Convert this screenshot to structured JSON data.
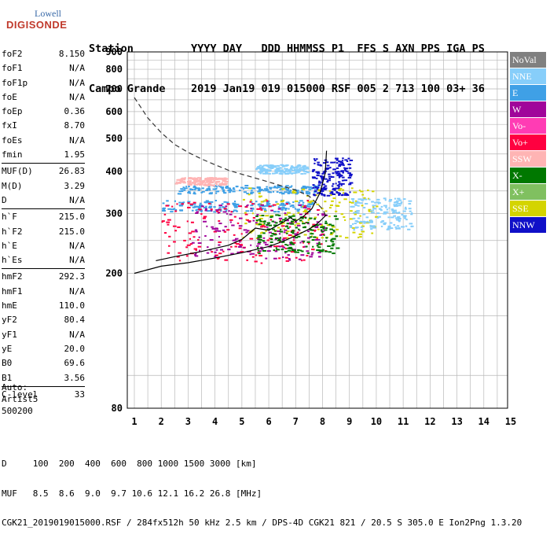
{
  "logo": {
    "line1": "Lowell",
    "line2": "DIGISONDE"
  },
  "header": {
    "row1": "Station         YYYY DAY   DDD HHMMSS P1  FFS S AXN PPS IGA PS",
    "row2": "Campo Grande    2019 Jan19 019 015000 RSF 005 2 713 100 03+ 36"
  },
  "params": [
    {
      "group": [
        {
          "k": "foF2",
          "v": "8.150"
        },
        {
          "k": "foF1",
          "v": "N/A"
        },
        {
          "k": "foF1p",
          "v": "N/A"
        },
        {
          "k": "foE",
          "v": "N/A"
        },
        {
          "k": "foEp",
          "v": "0.36"
        },
        {
          "k": "fxI",
          "v": "8.70"
        },
        {
          "k": "foEs",
          "v": "N/A"
        },
        {
          "k": "fmin",
          "v": "1.95"
        }
      ]
    },
    {
      "group": [
        {
          "k": "MUF(D)",
          "v": "26.83"
        },
        {
          "k": "M(D)",
          "v": "3.29"
        },
        {
          "k": "D",
          "v": "N/A"
        }
      ]
    },
    {
      "group": [
        {
          "k": "h`F",
          "v": "215.0"
        },
        {
          "k": "h`F2",
          "v": "215.0"
        },
        {
          "k": "h`E",
          "v": "N/A"
        },
        {
          "k": "h`Es",
          "v": "N/A"
        }
      ]
    },
    {
      "group": [
        {
          "k": "hmF2",
          "v": "292.3"
        },
        {
          "k": "hmF1",
          "v": "N/A"
        },
        {
          "k": "hmE",
          "v": "110.0"
        },
        {
          "k": "yF2",
          "v": "80.4"
        },
        {
          "k": "yF1",
          "v": "N/A"
        },
        {
          "k": "yE",
          "v": "20.0"
        },
        {
          "k": "B0",
          "v": "69.6"
        },
        {
          "k": "B1",
          "v": "3.56"
        }
      ]
    },
    {
      "group": [
        {
          "k": "C-level",
          "v": "33"
        }
      ]
    }
  ],
  "auto": {
    "line1": "Auto:",
    "line2": "Artist5",
    "line3": "500200"
  },
  "legend": [
    {
      "label": "NoVal",
      "color": "#808080"
    },
    {
      "label": "NNE",
      "color": "#87cefa"
    },
    {
      "label": "E",
      "color": "#3fa0e6"
    },
    {
      "label": "W",
      "color": "#a0059a"
    },
    {
      "label": "Vo-",
      "color": "#ff3cb4"
    },
    {
      "label": "Vo+",
      "color": "#ff0040"
    },
    {
      "label": "SSW",
      "color": "#ffb4b4"
    },
    {
      "label": "X-",
      "color": "#007800"
    },
    {
      "label": "X+",
      "color": "#80c060"
    },
    {
      "label": "SSE",
      "color": "#d4d400"
    },
    {
      "label": "NNW",
      "color": "#1010c8"
    }
  ],
  "bottom": {
    "line1": "D     100  200  400  600  800 1000 1500 3000 [km]",
    "line2": "MUF   8.5  8.6  9.0  9.7 10.6 12.1 16.2 26.8 [MHz]",
    "line3": "CGK21_2019019015000.RSF / 284fx512h 50 kHz 2.5 km / DPS-4D CGK21 821 / 20.5 S 305.0 E Ion2Png 1.3.20"
  },
  "chart_data": {
    "type": "scatter",
    "xlim": [
      1,
      15
    ],
    "ylim": [
      80,
      900
    ],
    "xticks": [
      1,
      2,
      3,
      4,
      5,
      6,
      7,
      8,
      9,
      10,
      11,
      12,
      13,
      14,
      15
    ],
    "yticks": [
      80,
      200,
      300,
      400,
      500,
      600,
      700,
      800,
      900
    ],
    "yscale": "log",
    "grid": true,
    "legend_position": "right",
    "ordinary_trace": {
      "x": [
        1.0,
        2.0,
        3.0,
        4.0,
        5.0,
        6.0,
        6.5,
        7.0,
        7.5,
        7.8,
        8.0,
        8.15
      ],
      "y": [
        200,
        210,
        215,
        222,
        230,
        240,
        248,
        258,
        270,
        280,
        290,
        298
      ]
    },
    "extraordinary_trace": {
      "x": [
        1.8,
        2.5,
        3.5,
        4.5,
        5.0,
        5.5,
        6.0,
        6.5,
        6.8,
        7.0,
        7.3,
        7.6,
        7.9,
        8.1,
        8.15
      ],
      "y": [
        218,
        224,
        232,
        242,
        252,
        272,
        268,
        282,
        292,
        285,
        295,
        310,
        345,
        395,
        460
      ]
    },
    "dashed_profile": {
      "x": [
        1.0,
        1.5,
        2.0,
        2.5,
        3.0,
        3.5,
        4.0,
        4.5,
        5.0,
        5.5,
        6.0,
        6.5,
        7.0,
        7.5,
        8.0,
        8.15
      ],
      "y": [
        660,
        575,
        520,
        480,
        455,
        435,
        418,
        403,
        392,
        382,
        372,
        362,
        352,
        338,
        310,
        292
      ]
    },
    "echo_clusters": [
      {
        "series": "E",
        "x": [
          2.0,
          7.6
        ],
        "y": [
          305,
          330
        ]
      },
      {
        "series": "E",
        "x": [
          2.6,
          7.8
        ],
        "y": [
          345,
          365
        ]
      },
      {
        "series": "NNE",
        "x": [
          5.5,
          7.4
        ],
        "y": [
          395,
          420
        ]
      },
      {
        "series": "SSE",
        "x": [
          5.0,
          10.0
        ],
        "y": [
          255,
          360
        ]
      },
      {
        "series": "NNE",
        "x": [
          9.0,
          11.3
        ],
        "y": [
          270,
          335
        ]
      },
      {
        "series": "SSW",
        "x": [
          2.5,
          4.4
        ],
        "y": [
          365,
          385
        ]
      },
      {
        "series": "Vo+",
        "x": [
          2.0,
          8.1
        ],
        "y": [
          215,
          330
        ]
      },
      {
        "series": "W",
        "x": [
          3.0,
          8.1
        ],
        "y": [
          220,
          320
        ]
      },
      {
        "series": "NNW",
        "x": [
          7.6,
          9.0
        ],
        "y": [
          340,
          440
        ]
      },
      {
        "series": "X-",
        "x": [
          5.5,
          8.5
        ],
        "y": [
          230,
          300
        ]
      }
    ]
  }
}
